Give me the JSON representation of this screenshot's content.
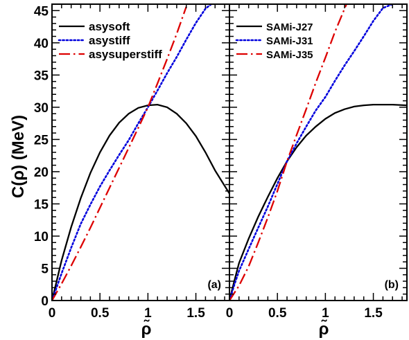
{
  "chart_data": [
    {
      "type": "line",
      "panel_label": "(a)",
      "xlabel": "ρ̃",
      "ylabel": "C(ρ) (MeV)",
      "xlim": [
        0,
        1.85
      ],
      "ylim": [
        0,
        46
      ],
      "x_ticks": [
        "0",
        "0.5",
        "1",
        "1.5"
      ],
      "y_ticks": [
        "0",
        "5",
        "10",
        "15",
        "20",
        "25",
        "30",
        "35",
        "40",
        "45"
      ],
      "legend_position": "top-left",
      "series": [
        {
          "name": "asysoft",
          "color": "#000000",
          "style": "solid",
          "x": [
            0,
            0.1,
            0.2,
            0.3,
            0.4,
            0.5,
            0.6,
            0.7,
            0.8,
            0.9,
            1.0,
            1.1,
            1.2,
            1.3,
            1.4,
            1.5,
            1.6,
            1.7,
            1.85
          ],
          "y": [
            0,
            6.2,
            11.4,
            15.9,
            19.8,
            23.0,
            25.6,
            27.6,
            29.0,
            29.9,
            30.3,
            30.4,
            30.0,
            29.0,
            27.5,
            25.5,
            23.0,
            20.2,
            16.6
          ]
        },
        {
          "name": "asystiff",
          "color": "#0000dd",
          "style": "dotted",
          "x": [
            0,
            0.1,
            0.2,
            0.3,
            0.4,
            0.5,
            0.6,
            0.7,
            0.8,
            0.9,
            1.0,
            1.1,
            1.2,
            1.3,
            1.4,
            1.5,
            1.6,
            1.66
          ],
          "y": [
            0,
            4.2,
            8.2,
            11.9,
            14.9,
            17.7,
            20.2,
            22.6,
            24.9,
            27.5,
            30.0,
            32.6,
            35.3,
            37.8,
            40.5,
            43.1,
            45.3,
            46.0
          ]
        },
        {
          "name": "asysuperstiff",
          "color": "#dd0000",
          "style": "dashdot",
          "x": [
            0,
            0.1,
            0.2,
            0.3,
            0.4,
            0.5,
            0.6,
            0.7,
            0.8,
            0.9,
            1.0,
            1.1,
            1.2,
            1.3,
            1.4
          ],
          "y": [
            0,
            2.6,
            5.4,
            8.3,
            11.3,
            14.4,
            17.5,
            20.6,
            23.7,
            26.8,
            30.0,
            33.7,
            37.5,
            41.4,
            45.6
          ]
        }
      ]
    },
    {
      "type": "line",
      "panel_label": "(b)",
      "xlabel": "ρ̃",
      "ylabel": "",
      "xlim": [
        0,
        1.85
      ],
      "ylim": [
        0,
        46
      ],
      "x_ticks": [
        "0",
        "0.5",
        "1",
        "1.5"
      ],
      "legend_position": "top-left",
      "series": [
        {
          "name": "SAMi-J27",
          "color": "#000000",
          "style": "solid",
          "x": [
            0,
            0.05,
            0.1,
            0.2,
            0.3,
            0.4,
            0.5,
            0.6,
            0.7,
            0.8,
            0.9,
            1.0,
            1.1,
            1.2,
            1.3,
            1.4,
            1.5,
            1.6,
            1.7,
            1.85
          ],
          "y": [
            0,
            3.0,
            5.8,
            9.6,
            13.0,
            16.1,
            19.0,
            21.6,
            23.8,
            25.6,
            27.0,
            28.2,
            29.1,
            29.7,
            30.1,
            30.3,
            30.4,
            30.4,
            30.4,
            30.3
          ]
        },
        {
          "name": "SAMi-J31",
          "color": "#0000dd",
          "style": "dotted",
          "x": [
            0,
            0.05,
            0.1,
            0.2,
            0.3,
            0.4,
            0.5,
            0.6,
            0.7,
            0.8,
            0.9,
            1.0,
            1.1,
            1.2,
            1.3,
            1.4,
            1.5,
            1.6,
            1.7
          ],
          "y": [
            0,
            2.4,
            4.6,
            8.0,
            11.3,
            14.6,
            18.1,
            21.6,
            24.4,
            27.0,
            29.5,
            31.6,
            34.1,
            36.5,
            38.7,
            41.0,
            43.4,
            45.4,
            46.0
          ]
        },
        {
          "name": "SAMi-J35",
          "color": "#dd0000",
          "style": "dashdot",
          "x": [
            0,
            0.1,
            0.2,
            0.3,
            0.4,
            0.5,
            0.6,
            0.7,
            0.8,
            0.9,
            1.0,
            1.1,
            1.2,
            1.22
          ],
          "y": [
            0,
            2.3,
            5.3,
            9.0,
            12.9,
            17.0,
            21.6,
            25.7,
            29.7,
            33.8,
            37.7,
            41.7,
            45.3,
            46.0
          ]
        }
      ]
    }
  ]
}
